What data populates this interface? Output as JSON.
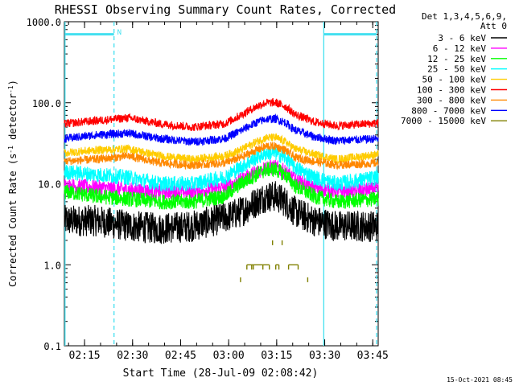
{
  "chart_data": {
    "type": "line",
    "title": "RHESSI Observing Summary Count Rates, Corrected",
    "xlabel": "Start Time (28-Jul-09 02:08:42)",
    "ylabel_main": "Corrected Count Rate (s",
    "ylabel_sup1": "-1",
    "ylabel_mid": " detector",
    "ylabel_sup2": "-1",
    "ylabel_end": ")",
    "yscale": "log",
    "ylim": [
      0.1,
      1000
    ],
    "ytick_labels": [
      "0.1",
      "1.0",
      "10.0",
      "100.0",
      "1000.0"
    ],
    "ytick_values": [
      0.1,
      1,
      10,
      100,
      1000
    ],
    "xlim_minutes": [
      0,
      98
    ],
    "xtick_labels": [
      "02:15",
      "02:30",
      "02:45",
      "03:00",
      "03:15",
      "03:30",
      "03:45"
    ],
    "xtick_minutes": [
      6.3,
      21.3,
      36.3,
      51.3,
      66.3,
      81.3,
      96.3
    ],
    "legend_header": [
      "Det 1,3,4,5,6,9,",
      "Att 0"
    ],
    "legend_position": "right",
    "night_marker_label": "N",
    "night_intervals_minutes": [
      [
        0.2,
        15.5
      ],
      [
        81.0,
        97.5
      ]
    ],
    "night_bar_level": 700,
    "footer_date": "15-Oct-2021 08:45",
    "series": [
      {
        "name": "3 - 6 keV",
        "color": "#000000",
        "x": [
          0,
          10,
          20,
          30,
          40,
          50,
          55,
          60,
          63,
          66,
          69,
          72,
          78,
          85,
          98
        ],
        "y": [
          3.5,
          3.5,
          3.0,
          2.8,
          3.0,
          3.8,
          4.5,
          6.0,
          7.0,
          7.0,
          6.0,
          4.5,
          3.5,
          3.0,
          3.0
        ]
      },
      {
        "name": "6 - 12 keV",
        "color": "#ff00ff",
        "x": [
          0,
          10,
          20,
          30,
          40,
          50,
          55,
          60,
          63,
          66,
          69,
          72,
          78,
          85,
          98
        ],
        "y": [
          9.5,
          9.0,
          8.5,
          8.0,
          8.0,
          9.0,
          11.0,
          14.0,
          16.0,
          16.0,
          14.0,
          11.0,
          9.0,
          8.0,
          8.5
        ]
      },
      {
        "name": "12 - 25 keV",
        "color": "#00ff00",
        "x": [
          0,
          10,
          20,
          30,
          40,
          50,
          55,
          60,
          63,
          66,
          69,
          72,
          78,
          85,
          98
        ],
        "y": [
          8.0,
          7.0,
          6.5,
          6.0,
          6.0,
          7.0,
          10.0,
          13.0,
          15.0,
          15.0,
          13.0,
          9.5,
          7.0,
          6.0,
          6.5
        ]
      },
      {
        "name": "25 - 50 keV",
        "color": "#00ffff",
        "x": [
          0,
          10,
          20,
          30,
          40,
          50,
          55,
          60,
          63,
          66,
          69,
          72,
          78,
          85,
          98
        ],
        "y": [
          14.0,
          13.0,
          12.0,
          10.0,
          10.0,
          12.0,
          16.0,
          21.0,
          24.0,
          24.0,
          21.0,
          16.0,
          12.0,
          10.0,
          12.0
        ]
      },
      {
        "name": "50 - 100 keV",
        "color": "#ffcc00",
        "x": [
          0,
          10,
          20,
          30,
          40,
          50,
          55,
          60,
          63,
          66,
          69,
          72,
          78,
          85,
          98
        ],
        "y": [
          24.0,
          26.0,
          27.0,
          22.0,
          20.0,
          22.0,
          26.0,
          33.0,
          37.0,
          37.0,
          33.0,
          27.0,
          23.0,
          20.0,
          23.0
        ]
      },
      {
        "name": "100 - 300 keV",
        "color": "#ff0000",
        "x": [
          0,
          10,
          20,
          30,
          40,
          50,
          55,
          60,
          63,
          66,
          69,
          72,
          78,
          85,
          98
        ],
        "y": [
          55.0,
          60.0,
          65.0,
          55.0,
          50.0,
          55.0,
          70.0,
          90.0,
          100.0,
          100.0,
          90.0,
          72.0,
          58.0,
          52.0,
          56.0
        ]
      },
      {
        "name": "300 - 800 keV",
        "color": "#ff8800",
        "x": [
          0,
          10,
          20,
          30,
          40,
          50,
          55,
          60,
          63,
          66,
          69,
          72,
          78,
          85,
          98
        ],
        "y": [
          19.0,
          20.0,
          22.0,
          18.0,
          17.0,
          18.0,
          21.0,
          26.0,
          29.0,
          29.0,
          26.0,
          21.0,
          19.0,
          17.0,
          18.0
        ]
      },
      {
        "name": "800 - 7000 keV",
        "color": "#0000ff",
        "x": [
          0,
          10,
          20,
          30,
          40,
          50,
          55,
          60,
          63,
          66,
          69,
          72,
          78,
          85,
          98
        ],
        "y": [
          36.0,
          40.0,
          42.0,
          36.0,
          33.0,
          36.0,
          45.0,
          57.0,
          63.0,
          63.0,
          57.0,
          46.0,
          38.0,
          34.0,
          36.0
        ]
      },
      {
        "name": "7000 - 15000 keV",
        "color": "#808000",
        "x": [
          55,
          57,
          58.5,
          59,
          62,
          64,
          65,
          66,
          67,
          68,
          70,
          73,
          76
        ],
        "y": [
          0.7,
          1.0,
          1.0,
          1.0,
          1.0,
          1.0,
          2.0,
          1.0,
          1.0,
          2.0,
          1.0,
          1.0,
          0.7
        ]
      }
    ]
  }
}
